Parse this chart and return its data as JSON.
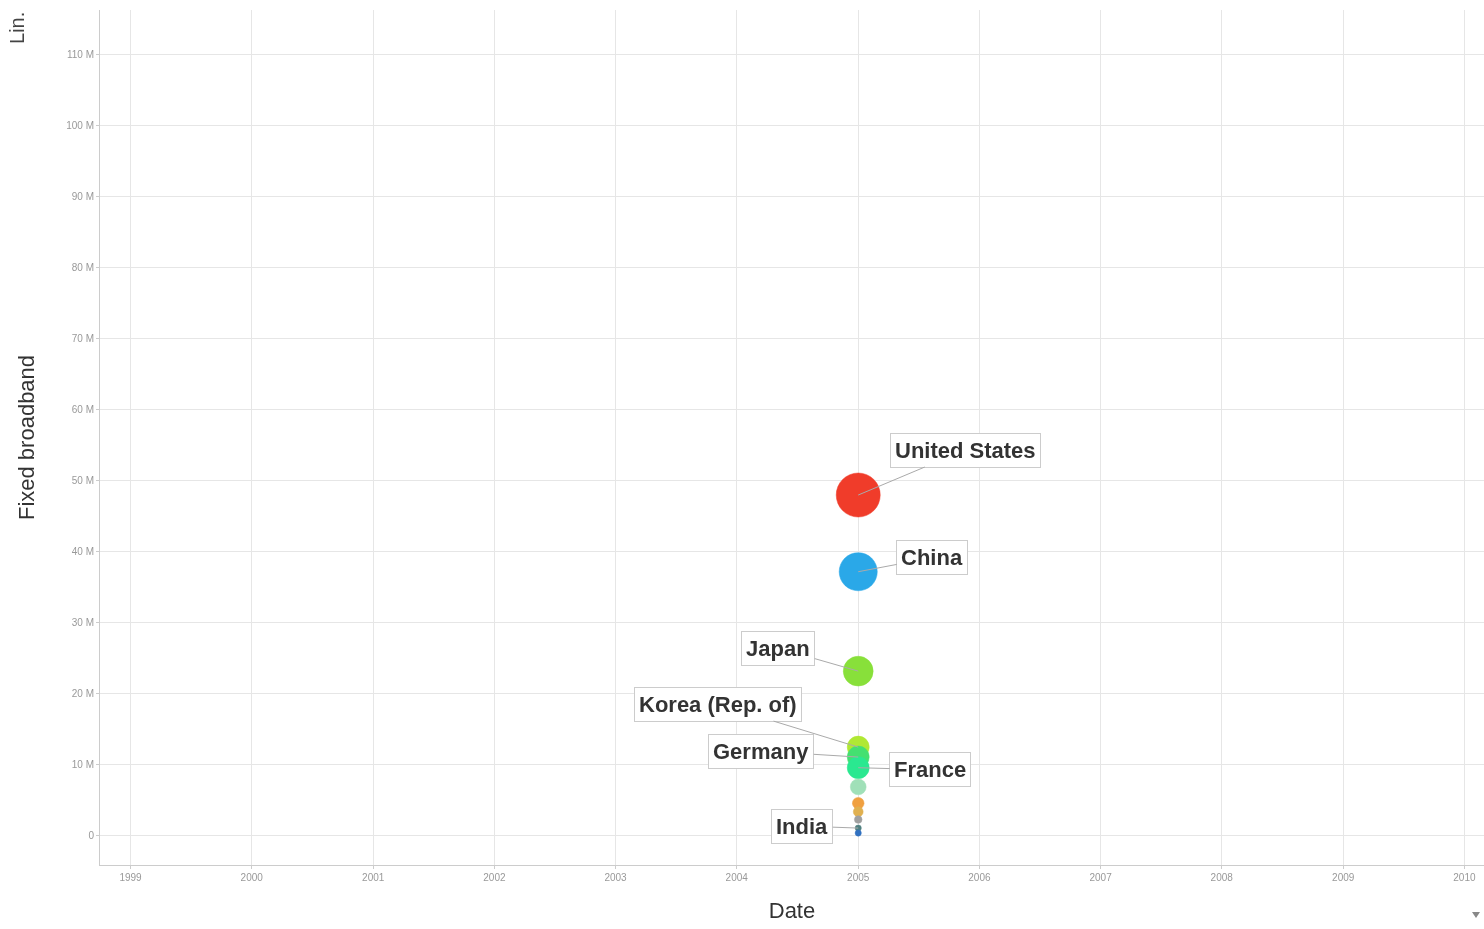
{
  "chart_data": {
    "type": "bubble",
    "xlabel": "Date",
    "ylabel": "Fixed broadband",
    "x": [
      "2005",
      "2005",
      "2005",
      "2005",
      "2005",
      "2005",
      "2005",
      "2005",
      "2005",
      "2005",
      "2005",
      "2005"
    ],
    "values": [
      48.0,
      37.2,
      23.2,
      12.5,
      11.1,
      9.6,
      6.9,
      4.6,
      3.4,
      2.3,
      1.1,
      0.4
    ],
    "sizes": [
      1,
      0.75,
      0.46,
      0.25,
      0.25,
      0.25,
      0.13,
      0.07,
      0.05,
      0.03,
      0.02,
      0.02
    ],
    "colors": [
      "#f03c2a",
      "#2aa8e8",
      "#88e03a",
      "#b0e834",
      "#44e070",
      "#2ae890",
      "#a0e0b8",
      "#f0a040",
      "#e0b050",
      "#a0a0a0",
      "#508080",
      "#3070c0"
    ],
    "annotations": [
      {
        "text": "United States",
        "x": "2005",
        "y": 48.0
      },
      {
        "text": "China",
        "x": "2005",
        "y": 37.2
      },
      {
        "text": "Japan",
        "x": "2005",
        "y": 23.2
      },
      {
        "text": "Korea (Rep. of)",
        "x": "2005",
        "y": 12.5
      },
      {
        "text": "Germany",
        "x": "2005",
        "y": 11.1
      },
      {
        "text": "France",
        "x": "2005",
        "y": 9.6
      },
      {
        "text": "India",
        "x": "2005",
        "y": 1.1
      },
      "Lin."
    ],
    "xlim": [
      "1998-10",
      "2010-03"
    ],
    "xticks": [
      {
        "value": "1999",
        "label": "1999"
      },
      {
        "value": "2000",
        "label": "2000"
      },
      {
        "value": "2001",
        "label": "2001"
      },
      {
        "value": "2002",
        "label": "2002"
      },
      {
        "value": "2003",
        "label": "2003"
      },
      {
        "value": "2004",
        "label": "2004"
      },
      {
        "value": "2005",
        "label": "2005"
      },
      {
        "value": "2006",
        "label": "2006"
      },
      {
        "value": "2007",
        "label": "2007"
      },
      {
        "value": "2008",
        "label": "2008"
      },
      {
        "value": "2009",
        "label": "2009"
      },
      {
        "value": "2010",
        "label": "2010"
      }
    ],
    "ylim": [
      -4.1,
      116.3
    ],
    "yticks": [
      0,
      {
        "value": 10,
        "label": "10 M"
      },
      {
        "value": 20,
        "label": "20 M"
      },
      {
        "value": 30,
        "label": "30 M"
      },
      {
        "value": 40,
        "label": "40 M"
      },
      {
        "value": 50,
        "label": "50 M"
      },
      {
        "value": 60,
        "label": "60 M"
      },
      {
        "value": 70,
        "label": "70 M"
      },
      {
        "value": 80,
        "label": "80 M"
      },
      {
        "value": 90,
        "label": "90 M"
      },
      {
        "value": 100,
        "label": "100 M"
      },
      {
        "value": 110,
        "label": "110 M"
      }
    ],
    "grid": true,
    "marker": "circle"
  }
}
